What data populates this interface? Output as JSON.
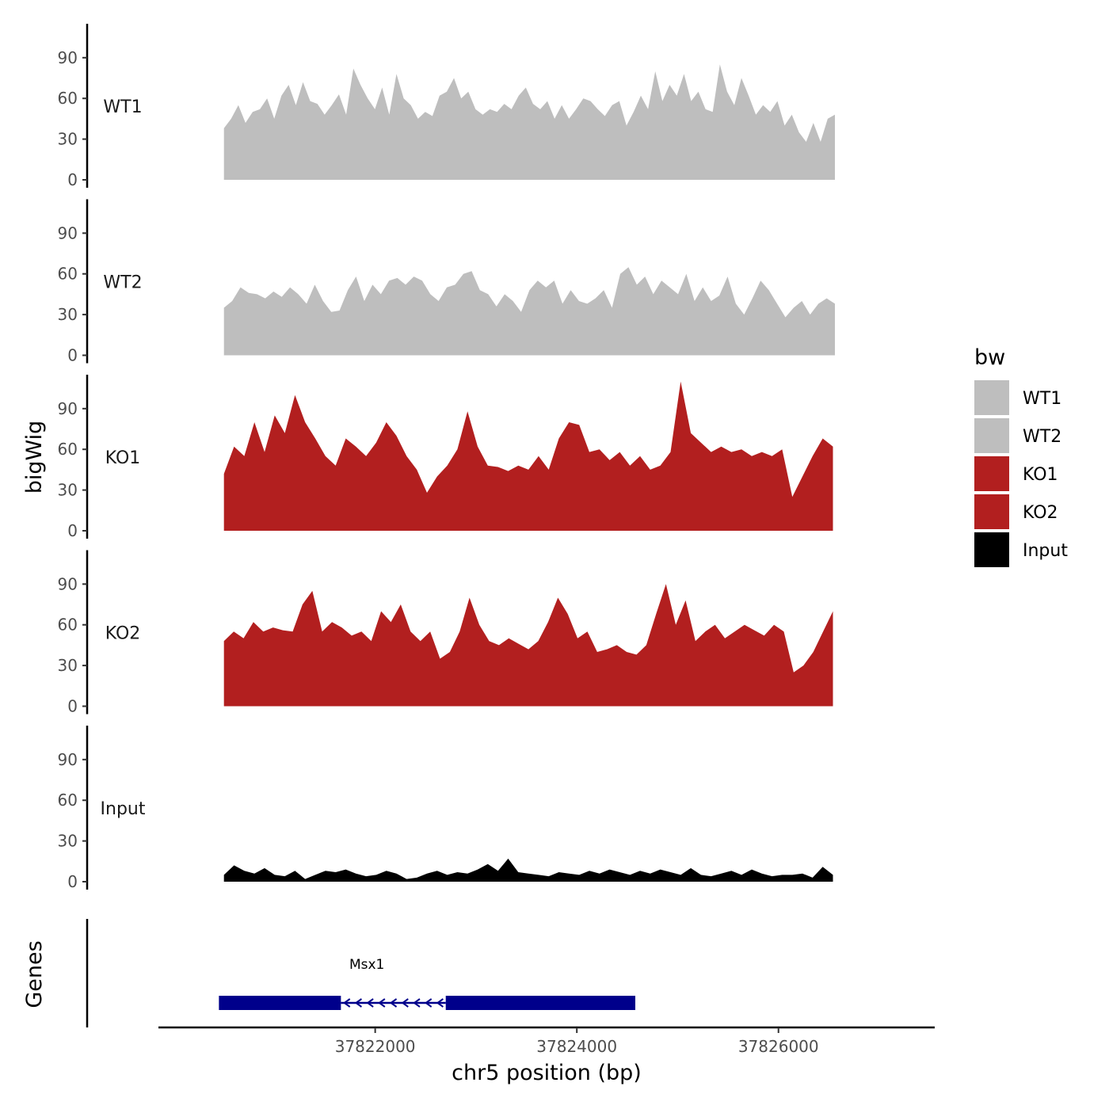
{
  "chart_data": {
    "type": "area",
    "title": "",
    "xlabel": "chr5 position (bp)",
    "ylabel": "bigWig",
    "genes_label": "Genes",
    "xlim": [
      37819850,
      37827550
    ],
    "x_ticks": [
      {
        "value": 37822000,
        "label": "37822000"
      },
      {
        "value": 37824000,
        "label": "37824000"
      },
      {
        "value": 37826000,
        "label": "37826000"
      }
    ],
    "ylim": [
      0,
      115
    ],
    "y_ticks": [
      {
        "value": 0,
        "label": "0"
      },
      {
        "value": 30,
        "label": "30"
      },
      {
        "value": 60,
        "label": "60"
      },
      {
        "value": 90,
        "label": "90"
      }
    ],
    "legend": {
      "title": "bw",
      "entries": [
        {
          "label": "WT1",
          "color": "#bebebe"
        },
        {
          "label": "WT2",
          "color": "#bebebe"
        },
        {
          "label": "KO1",
          "color": "#b21f1f"
        },
        {
          "label": "KO2",
          "color": "#b21f1f"
        },
        {
          "label": "Input",
          "color": "#000000"
        }
      ]
    },
    "series": [
      {
        "name": "WT1",
        "color": "#bebebe",
        "x_start": 37820500,
        "x_end": 37826560,
        "values": [
          38,
          45,
          55,
          42,
          50,
          52,
          60,
          45,
          62,
          70,
          55,
          72,
          58,
          56,
          48,
          55,
          63,
          48,
          82,
          70,
          60,
          52,
          68,
          48,
          78,
          60,
          55,
          45,
          50,
          47,
          62,
          65,
          75,
          60,
          65,
          52,
          48,
          52,
          50,
          56,
          52,
          62,
          68,
          56,
          52,
          58,
          45,
          55,
          45,
          52,
          60,
          58,
          52,
          47,
          55,
          58,
          40,
          50,
          62,
          52,
          80,
          58,
          70,
          62,
          78,
          58,
          65,
          52,
          50,
          85,
          65,
          55,
          75,
          62,
          48,
          55,
          50,
          58,
          40,
          48,
          35,
          28,
          42,
          28,
          45,
          48
        ]
      },
      {
        "name": "WT2",
        "color": "#bebebe",
        "x_start": 37820500,
        "x_end": 37826560,
        "values": [
          35,
          40,
          50,
          46,
          45,
          42,
          47,
          43,
          50,
          45,
          38,
          52,
          40,
          32,
          33,
          48,
          58,
          40,
          52,
          45,
          55,
          57,
          52,
          58,
          55,
          45,
          40,
          50,
          52,
          60,
          62,
          48,
          45,
          36,
          45,
          40,
          32,
          48,
          55,
          50,
          55,
          38,
          48,
          40,
          38,
          42,
          48,
          35,
          60,
          65,
          52,
          58,
          45,
          55,
          50,
          45,
          60,
          40,
          50,
          40,
          44,
          58,
          38,
          30,
          42,
          55,
          48,
          38,
          28,
          35,
          40,
          30,
          38,
          42,
          38
        ]
      },
      {
        "name": "KO1",
        "color": "#b21f1f",
        "x_start": 37820500,
        "x_end": 37826540,
        "values": [
          42,
          62,
          55,
          80,
          58,
          85,
          72,
          100,
          80,
          68,
          55,
          48,
          68,
          62,
          55,
          65,
          80,
          70,
          55,
          45,
          28,
          40,
          48,
          60,
          88,
          62,
          48,
          47,
          44,
          48,
          45,
          55,
          45,
          68,
          80,
          78,
          58,
          60,
          52,
          58,
          48,
          55,
          45,
          48,
          58,
          110,
          72,
          65,
          58,
          62,
          58,
          60,
          55,
          58,
          55,
          60,
          25,
          40,
          55,
          68,
          62
        ]
      },
      {
        "name": "KO2",
        "color": "#b21f1f",
        "x_start": 37820500,
        "x_end": 37826540,
        "values": [
          48,
          55,
          50,
          62,
          55,
          58,
          56,
          55,
          75,
          85,
          55,
          62,
          58,
          52,
          55,
          48,
          70,
          62,
          75,
          55,
          48,
          55,
          35,
          40,
          55,
          80,
          60,
          48,
          45,
          50,
          46,
          42,
          48,
          62,
          80,
          68,
          50,
          55,
          40,
          42,
          45,
          40,
          38,
          45,
          68,
          90,
          60,
          78,
          48,
          55,
          60,
          50,
          55,
          60,
          56,
          52,
          60,
          55,
          25,
          30,
          40,
          55,
          70
        ]
      },
      {
        "name": "Input",
        "color": "#000000",
        "x_start": 37820500,
        "x_end": 37826540,
        "values": [
          5,
          12,
          8,
          6,
          10,
          5,
          4,
          8,
          2,
          5,
          8,
          7,
          9,
          6,
          4,
          5,
          8,
          6,
          2,
          3,
          6,
          8,
          5,
          7,
          6,
          9,
          13,
          8,
          17,
          7,
          6,
          5,
          4,
          7,
          6,
          5,
          8,
          6,
          9,
          7,
          5,
          8,
          6,
          9,
          7,
          5,
          10,
          5,
          4,
          6,
          8,
          5,
          9,
          6,
          4,
          5,
          5,
          6,
          3,
          11,
          5
        ]
      }
    ],
    "gene_track": {
      "color": "#00008b",
      "genes": [
        {
          "name": "Msx1",
          "strand": "-",
          "start": 37820450,
          "end": 37824580,
          "exons": [
            [
              37820450,
              37821660
            ],
            [
              37822700,
              37824580
            ]
          ],
          "intron": [
            37821660,
            37822700
          ]
        }
      ]
    }
  }
}
